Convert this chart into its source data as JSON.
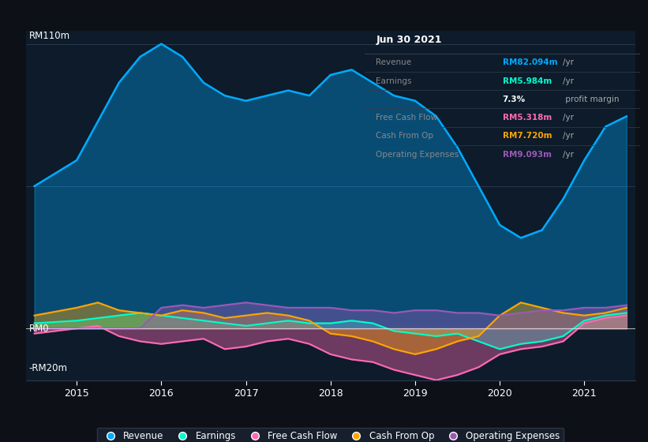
{
  "bg_color": "#0d1117",
  "plot_bg_color": "#0d1b2a",
  "title": "Jun 30 2021",
  "ylim": [
    -20,
    115
  ],
  "ylabel_top": "RM110m",
  "ylabel_zero": "RM0",
  "ylabel_neg": "-RM20m",
  "grid_color": "#2a3a4a",
  "line_color_revenue": "#00aaff",
  "line_color_earnings": "#00ffcc",
  "line_color_fcf": "#ff69b4",
  "line_color_cashop": "#ffa500",
  "line_color_opex": "#9b59b6",
  "fill_alpha_revenue": 0.35,
  "fill_alpha_other": 0.4,
  "x_years": [
    2014.5,
    2015.0,
    2015.25,
    2015.5,
    2015.75,
    2016.0,
    2016.25,
    2016.5,
    2016.75,
    2017.0,
    2017.25,
    2017.5,
    2017.75,
    2018.0,
    2018.25,
    2018.5,
    2018.75,
    2019.0,
    2019.25,
    2019.5,
    2019.75,
    2020.0,
    2020.25,
    2020.5,
    2020.75,
    2021.0,
    2021.25,
    2021.5
  ],
  "revenue": [
    55,
    65,
    80,
    95,
    105,
    110,
    105,
    95,
    90,
    88,
    90,
    92,
    90,
    98,
    100,
    95,
    90,
    88,
    82,
    70,
    55,
    40,
    35,
    38,
    50,
    65,
    78,
    82
  ],
  "earnings": [
    2,
    3,
    4,
    5,
    6,
    5,
    4,
    3,
    2,
    1,
    2,
    3,
    2,
    2,
    3,
    2,
    -1,
    -2,
    -3,
    -2,
    -5,
    -8,
    -6,
    -5,
    -3,
    3,
    5,
    6
  ],
  "fcf": [
    -2,
    0,
    1,
    -3,
    -5,
    -6,
    -5,
    -4,
    -8,
    -7,
    -5,
    -4,
    -6,
    -10,
    -12,
    -13,
    -16,
    -18,
    -20,
    -18,
    -15,
    -10,
    -8,
    -7,
    -5,
    2,
    4,
    5
  ],
  "cashop": [
    5,
    8,
    10,
    7,
    6,
    5,
    7,
    6,
    4,
    5,
    6,
    5,
    3,
    -2,
    -3,
    -5,
    -8,
    -10,
    -8,
    -5,
    -3,
    5,
    10,
    8,
    6,
    5,
    6,
    8
  ],
  "opex": [
    0,
    0,
    0,
    0,
    0,
    8,
    9,
    8,
    9,
    10,
    9,
    8,
    8,
    8,
    7,
    7,
    6,
    7,
    7,
    6,
    6,
    5,
    6,
    7,
    7,
    8,
    8,
    9
  ],
  "legend_entries": [
    "Revenue",
    "Earnings",
    "Free Cash Flow",
    "Cash From Op",
    "Operating Expenses"
  ],
  "legend_colors": [
    "#00aaff",
    "#00ffcc",
    "#ff69b4",
    "#ffa500",
    "#9b59b6"
  ],
  "table_rows": [
    {
      "label": "Revenue",
      "value": "RM82.094m",
      "unit": "/yr",
      "color": "#00aaff"
    },
    {
      "label": "Earnings",
      "value": "RM5.984m",
      "unit": "/yr",
      "color": "#00ffcc"
    },
    {
      "label": "",
      "value": "7.3%",
      "unit": " profit margin",
      "color": "white"
    },
    {
      "label": "Free Cash Flow",
      "value": "RM5.318m",
      "unit": "/yr",
      "color": "#ff69b4"
    },
    {
      "label": "Cash From Op",
      "value": "RM7.720m",
      "unit": "/yr",
      "color": "#ffa500"
    },
    {
      "label": "Operating Expenses",
      "value": "RM9.093m",
      "unit": "/yr",
      "color": "#9b59b6"
    }
  ]
}
